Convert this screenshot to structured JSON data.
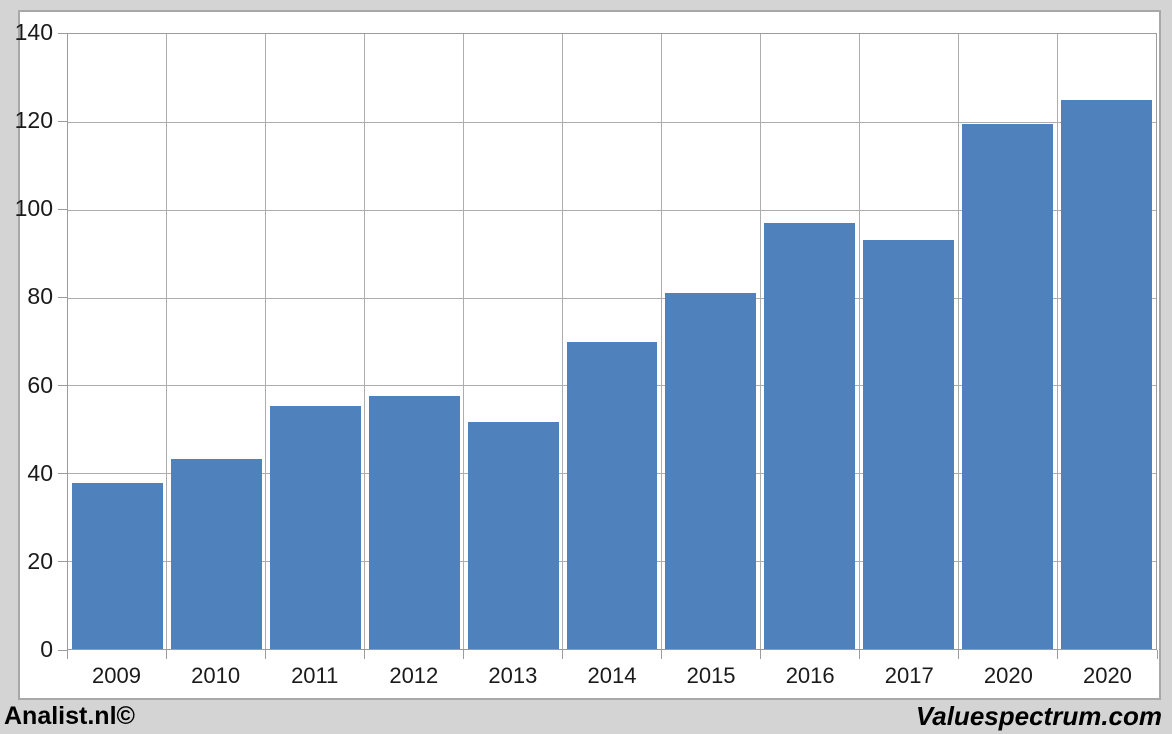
{
  "chart_data": {
    "type": "bar",
    "title": "",
    "xlabel": "",
    "ylabel": "",
    "categories": [
      "2009",
      "2010",
      "2011",
      "2012",
      "2013",
      "2014",
      "2015",
      "2016",
      "2017",
      "2020",
      "2020"
    ],
    "values": [
      37.7,
      43.3,
      55.3,
      57.6,
      51.6,
      70,
      81,
      97,
      93,
      119.5,
      125
    ],
    "ylim": [
      0,
      140
    ],
    "yticks": [
      0,
      20,
      40,
      60,
      80,
      100,
      120,
      140
    ],
    "grid": true,
    "legend": false,
    "bar_color": "#4f81bd"
  },
  "footer": {
    "left_text": "Analist.nl©",
    "right_text": "Valuespectrum.com"
  },
  "colors": {
    "outer_bg": "#d4d4d4",
    "panel_bg": "#ffffff",
    "panel_border": "#a8a8a8",
    "grid_line": "#adadad",
    "axis_line": "#9c9c9c",
    "bar": "#4f81bd",
    "text": "#1a1a1a"
  }
}
